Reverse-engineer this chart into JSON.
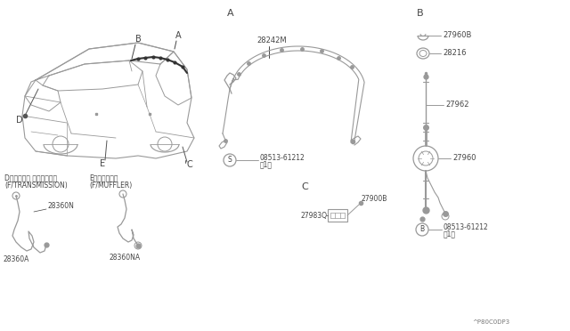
{
  "bg_color": "#ffffff",
  "lc": "#999999",
  "tc": "#444444",
  "dark": "#555555",
  "part_code": "^P80C0DP3",
  "labels": {
    "A_ref": "A",
    "B_ref": "B",
    "C_ref": "C",
    "D_ref": "D",
    "E_ref": "E",
    "part_28242M": "28242M",
    "part_27960B": "27960B",
    "part_28216": "28216",
    "part_27962": "27962",
    "part_27960": "27960",
    "part_08513_S": "08513-61212",
    "part_08513_S2": "（1）",
    "part_08513_B": "08513-61212",
    "part_08513_B2": "（1）",
    "part_27900B": "27900B",
    "part_27983Q": "27983Q",
    "part_28360N": "28360N",
    "part_28360A": "28360A",
    "part_28360NA": "28360NA",
    "label_D_jp": "D（トランス ミッション）",
    "label_D_en": "(F/TRANSMISSION)",
    "label_E_jp": "E（マフラー）",
    "label_E_en": "(F/MUFFLER)"
  }
}
